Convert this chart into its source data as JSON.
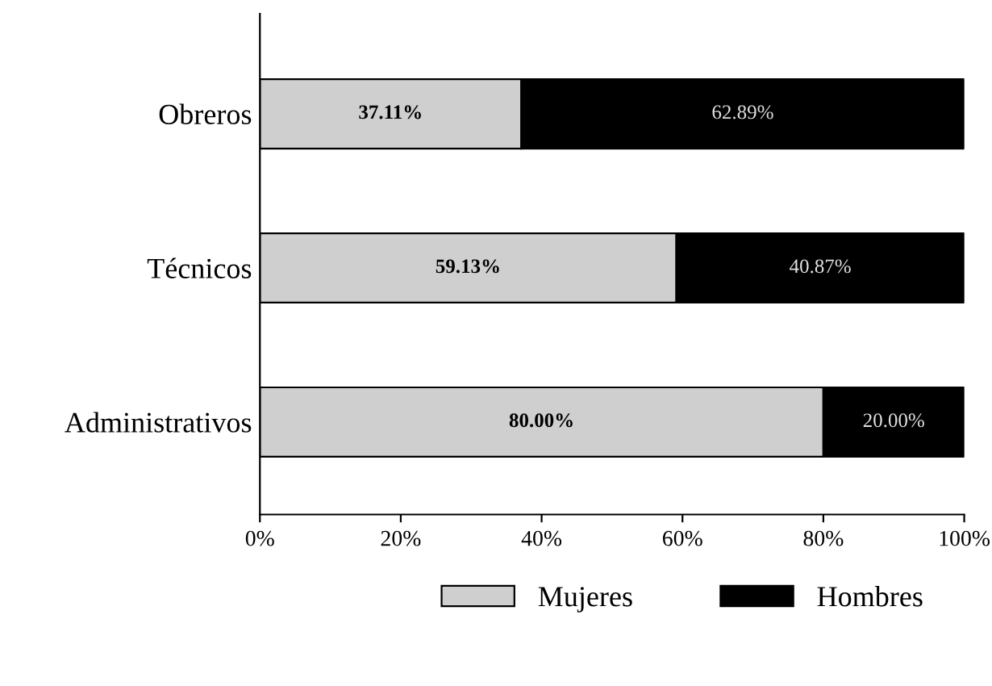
{
  "chart_data": {
    "type": "bar",
    "orientation": "horizontal",
    "stacked": true,
    "categories": [
      "Obreros",
      "Técnicos",
      "Administrativos"
    ],
    "series": [
      {
        "name": "Mujeres",
        "color": "#cfcfcf",
        "values": [
          37.11,
          59.13,
          80.0
        ],
        "value_labels": [
          "37.11%",
          "59.13%",
          "80.00%"
        ]
      },
      {
        "name": "Hombres",
        "color": "#000000",
        "values": [
          62.89,
          40.87,
          20.0
        ],
        "value_labels": [
          "62.89%",
          "40.87%",
          "20.00%"
        ]
      }
    ],
    "xlim": [
      0,
      100
    ],
    "xticks": [
      {
        "value": 0,
        "label": "0%"
      },
      {
        "value": 20,
        "label": "20%"
      },
      {
        "value": 40,
        "label": "40%"
      },
      {
        "value": 60,
        "label": "60%"
      },
      {
        "value": 80,
        "label": "80%"
      },
      {
        "value": 100,
        "label": "100%"
      }
    ],
    "grid": false,
    "legend": "bottom"
  }
}
